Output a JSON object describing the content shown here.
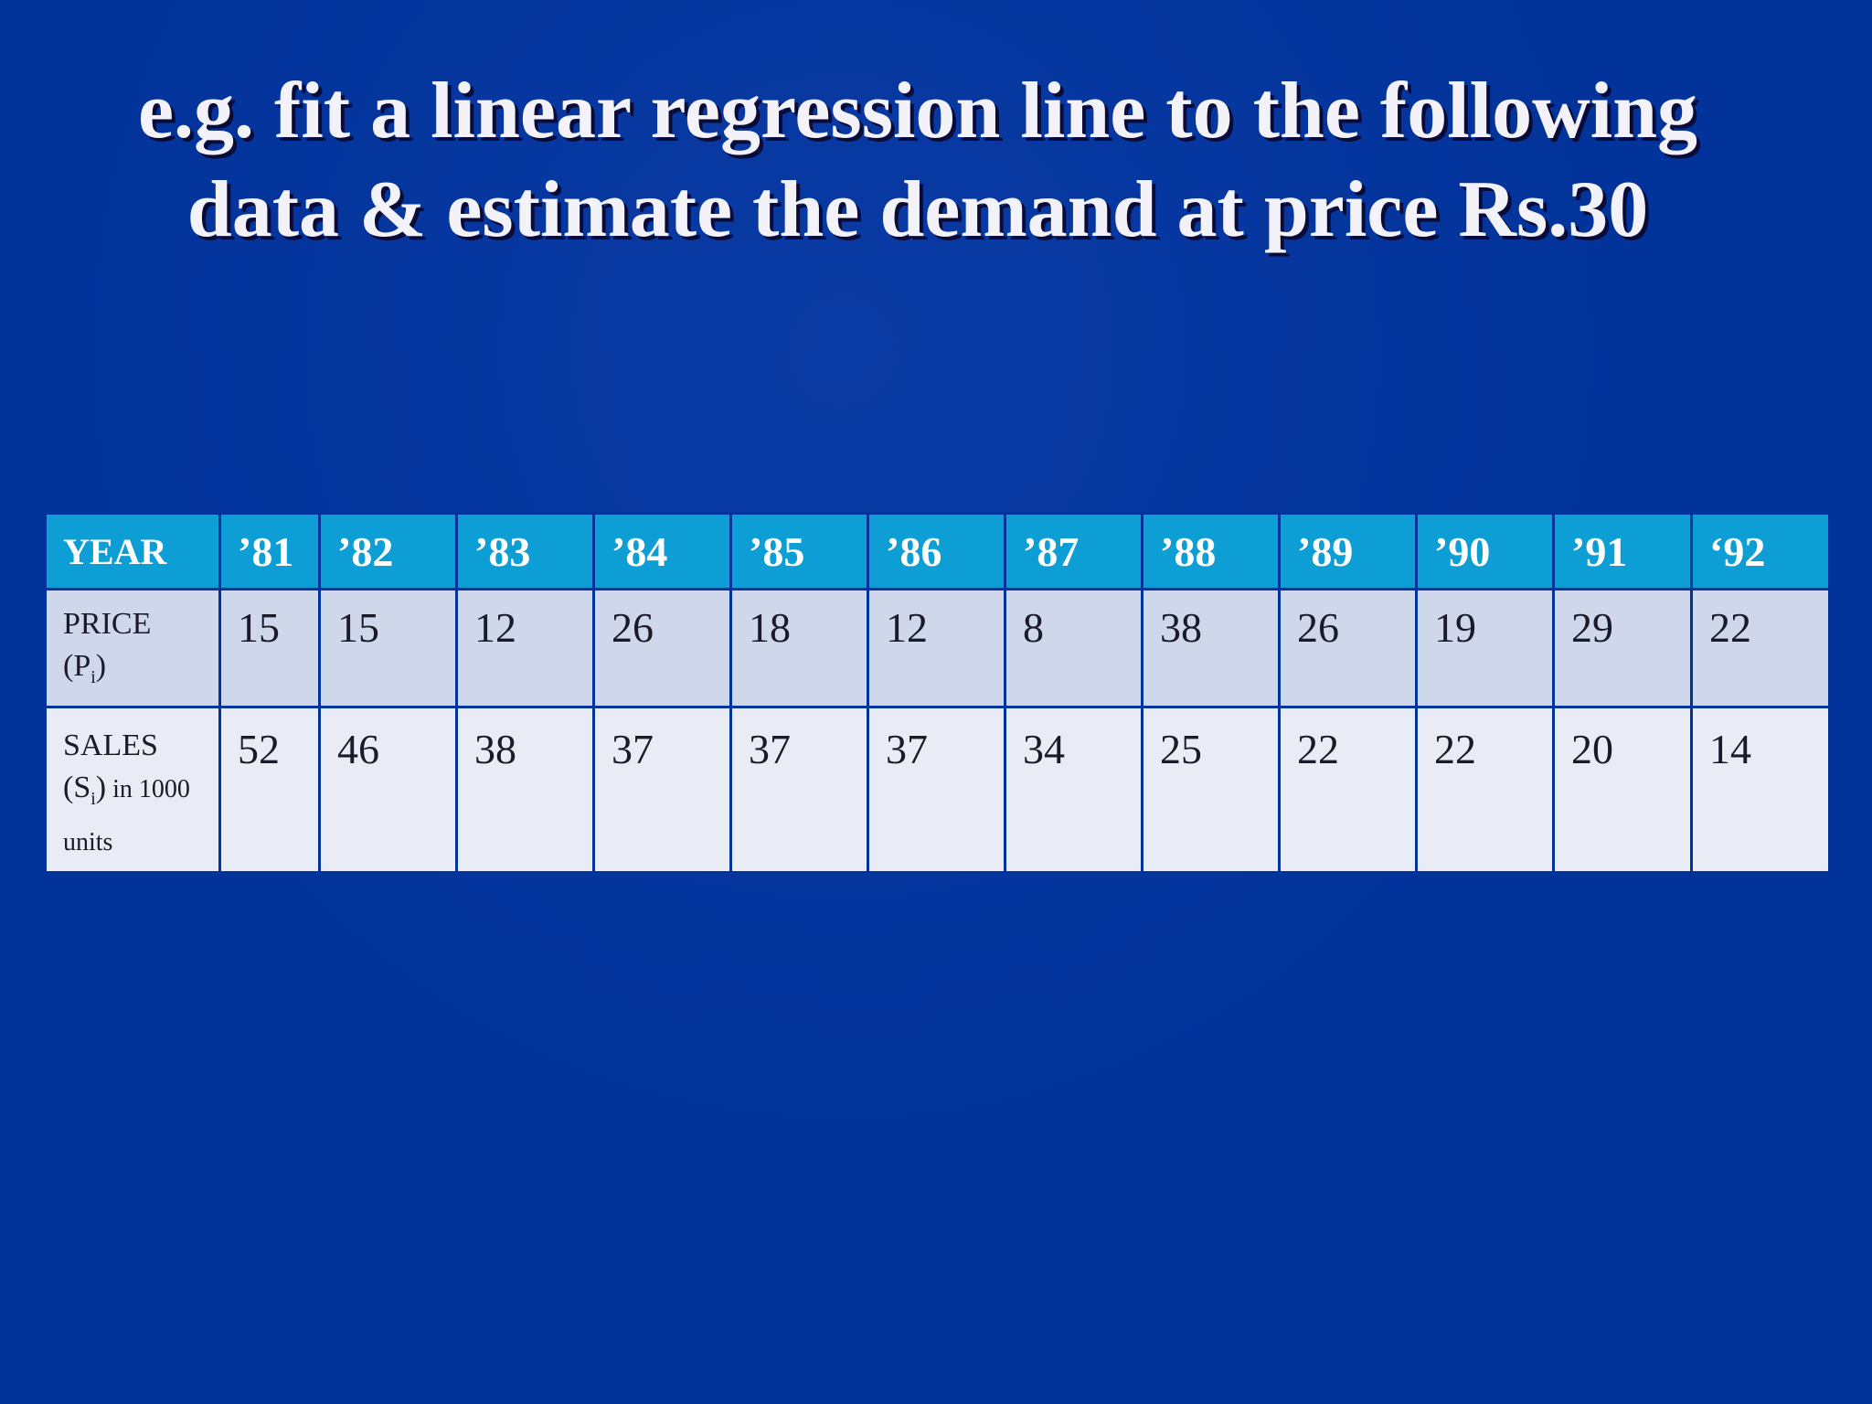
{
  "title": {
    "line1": "e.g. fit a linear regression line to the following",
    "line2": "data & estimate the demand at price Rs.30"
  },
  "table": {
    "year_label": "YEAR",
    "price_label": "PRICE",
    "price_symbol": "(P",
    "price_sub": "i",
    "price_close": ")",
    "sales_label": "SALES",
    "sales_symbol": "(S",
    "sales_sub": "i",
    "sales_close": ")",
    "sales_units": " in 1000 units",
    "years": [
      "’81",
      "’82",
      "’83",
      "’84",
      "’85",
      "’86",
      "’87",
      "’88",
      "’89",
      "’90",
      "’91",
      "‘92"
    ],
    "price": [
      "15",
      "15",
      "12",
      "26",
      "18",
      "12",
      "8",
      "38",
      "26",
      "19",
      "29",
      "22"
    ],
    "sales": [
      "52",
      "46",
      "38",
      "37",
      "37",
      "37",
      "34",
      "25",
      "22",
      "22",
      "20",
      "14"
    ]
  },
  "colors": {
    "background": "#00349c",
    "header_row": "#0e9ed6",
    "price_row": "#cfd7ea",
    "sales_row": "#e9ecf5"
  }
}
